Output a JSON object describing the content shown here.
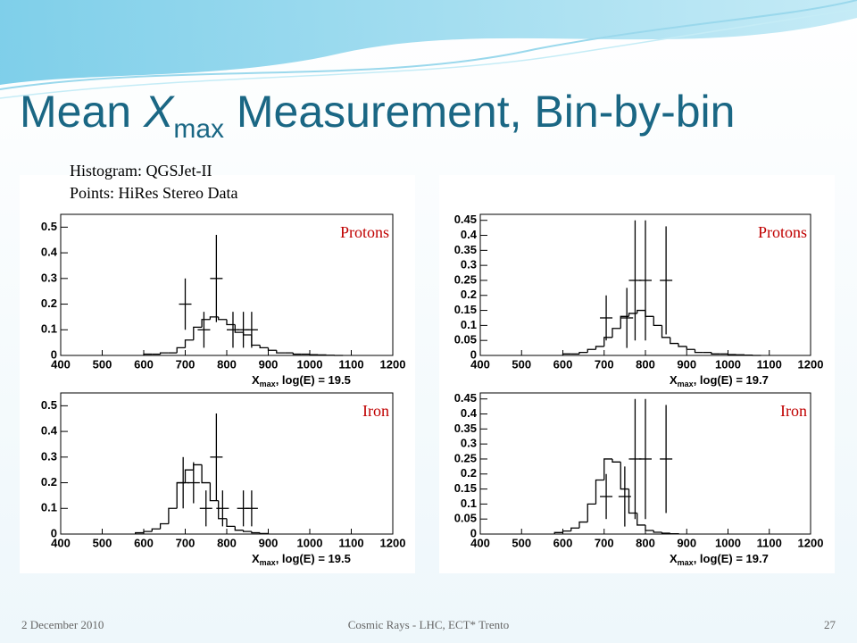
{
  "slide": {
    "title_prefix": "Mean ",
    "title_symbol": "X",
    "title_subscript": "max",
    "title_suffix": " Measurement, Bin-by-bin",
    "note_lines": [
      "Histogram: QGSJet-II",
      "Points: HiRes Stereo Data"
    ],
    "footer_date": "2 December 2010",
    "footer_center": "Cosmic Rays - LHC, ECT* Trento",
    "page_number": "27"
  },
  "chart_data": [
    {
      "type": "histogram",
      "label": "Protons",
      "label_color": "#c00000",
      "xlabel_symbol": "X",
      "xlabel_subscript": "max",
      "xlabel_rest": ", log(E) = 19.5",
      "xlim": [
        400,
        1200
      ],
      "xticks": [
        400,
        500,
        600,
        700,
        800,
        900,
        1000,
        1100,
        1200
      ],
      "ylim": [
        0,
        0.55
      ],
      "yticks": [
        0,
        0.1,
        0.2,
        0.3,
        0.4,
        0.5
      ],
      "bins": [
        600,
        620,
        640,
        660,
        680,
        700,
        720,
        740,
        760,
        780,
        800,
        820,
        840,
        860,
        880,
        900,
        920,
        940,
        960,
        980,
        1000,
        1020,
        1040,
        1060,
        1080
      ],
      "counts": [
        0.005,
        0.005,
        0.01,
        0.01,
        0.03,
        0.06,
        0.11,
        0.14,
        0.15,
        0.14,
        0.12,
        0.09,
        0.08,
        0.04,
        0.03,
        0.02,
        0.01,
        0.01,
        0.005,
        0.005,
        0.003,
        0.002,
        0.001,
        0
      ],
      "points": {
        "x": [
          700,
          745,
          775,
          815,
          840,
          860
        ],
        "values": [
          0.2,
          0.1,
          0.3,
          0.1,
          0.1,
          0.1
        ],
        "errors": [
          0.1,
          0.07,
          0.17,
          0.07,
          0.07,
          0.07
        ]
      }
    },
    {
      "type": "histogram",
      "label": "Protons",
      "label_color": "#c00000",
      "xlabel_symbol": "X",
      "xlabel_subscript": "max",
      "xlabel_rest": ", log(E) = 19.7",
      "xlim": [
        400,
        1200
      ],
      "xticks": [
        400,
        500,
        600,
        700,
        800,
        900,
        1000,
        1100,
        1200
      ],
      "ylim": [
        0,
        0.47
      ],
      "yticks": [
        0,
        0.05,
        0.1,
        0.15,
        0.2,
        0.25,
        0.3,
        0.35,
        0.4,
        0.45
      ],
      "bins": [
        600,
        620,
        640,
        660,
        680,
        700,
        720,
        740,
        760,
        780,
        800,
        820,
        840,
        860,
        880,
        900,
        920,
        940,
        960,
        980,
        1000,
        1020,
        1040,
        1060,
        1080
      ],
      "counts": [
        0.005,
        0.005,
        0.01,
        0.02,
        0.03,
        0.06,
        0.09,
        0.13,
        0.14,
        0.15,
        0.13,
        0.1,
        0.06,
        0.04,
        0.03,
        0.02,
        0.01,
        0.01,
        0.005,
        0.005,
        0.003,
        0.002,
        0.001,
        0
      ],
      "points": {
        "x": [
          705,
          755,
          775,
          800,
          850
        ],
        "values": [
          0.125,
          0.125,
          0.25,
          0.25,
          0.25
        ],
        "errors": [
          0.075,
          0.1,
          0.2,
          0.2,
          0.18
        ]
      }
    },
    {
      "type": "histogram",
      "label": "Iron",
      "label_color": "#c00000",
      "xlabel_symbol": "X",
      "xlabel_subscript": "max",
      "xlabel_rest": ", log(E) = 19.5",
      "xlim": [
        400,
        1200
      ],
      "xticks": [
        400,
        500,
        600,
        700,
        800,
        900,
        1000,
        1100,
        1200
      ],
      "ylim": [
        0,
        0.55
      ],
      "yticks": [
        0,
        0.1,
        0.2,
        0.3,
        0.4,
        0.5
      ],
      "bins": [
        580,
        600,
        620,
        640,
        660,
        680,
        700,
        720,
        740,
        760,
        780,
        800,
        820,
        840,
        860,
        880,
        900
      ],
      "counts": [
        0.005,
        0.01,
        0.02,
        0.04,
        0.1,
        0.2,
        0.25,
        0.27,
        0.2,
        0.13,
        0.06,
        0.03,
        0.015,
        0.01,
        0.005,
        0.002
      ],
      "points": {
        "x": [
          695,
          720,
          750,
          775,
          790,
          840,
          860
        ],
        "values": [
          0.2,
          0.2,
          0.1,
          0.3,
          0.1,
          0.1,
          0.1
        ],
        "errors": [
          0.1,
          0.08,
          0.07,
          0.17,
          0.07,
          0.07,
          0.07
        ]
      }
    },
    {
      "type": "histogram",
      "label": "Iron",
      "label_color": "#c00000",
      "xlabel_symbol": "X",
      "xlabel_subscript": "max",
      "xlabel_rest": ", log(E) = 19.7",
      "xlim": [
        400,
        1200
      ],
      "xticks": [
        400,
        500,
        600,
        700,
        800,
        900,
        1000,
        1100,
        1200
      ],
      "ylim": [
        0,
        0.47
      ],
      "yticks": [
        0,
        0.05,
        0.1,
        0.15,
        0.2,
        0.25,
        0.3,
        0.35,
        0.4,
        0.45
      ],
      "bins": [
        580,
        600,
        620,
        640,
        660,
        680,
        700,
        720,
        740,
        760,
        780,
        800,
        820,
        840,
        860,
        880
      ],
      "counts": [
        0.005,
        0.01,
        0.02,
        0.04,
        0.1,
        0.18,
        0.25,
        0.24,
        0.15,
        0.07,
        0.03,
        0.012,
        0.006,
        0.003,
        0.001
      ],
      "points": {
        "x": [
          705,
          750,
          775,
          800,
          850
        ],
        "values": [
          0.125,
          0.125,
          0.25,
          0.25,
          0.25
        ],
        "errors": [
          0.075,
          0.1,
          0.2,
          0.2,
          0.18
        ]
      }
    }
  ]
}
